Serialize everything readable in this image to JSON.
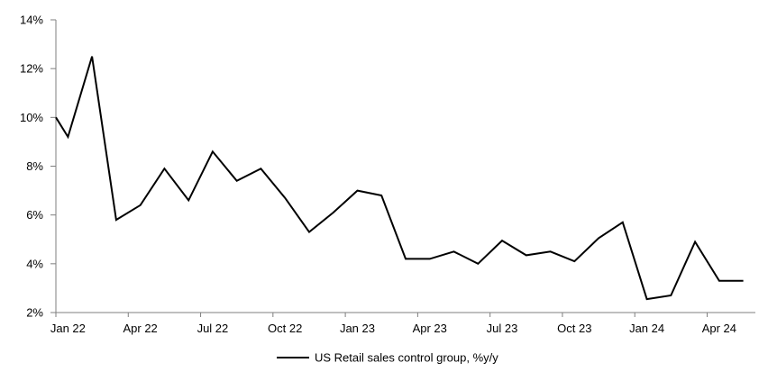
{
  "chart_data": {
    "type": "line",
    "title": "",
    "xlabel": "",
    "ylabel": "",
    "ylim": [
      2,
      14
    ],
    "y_tick_labels": [
      "2%",
      "4%",
      "6%",
      "8%",
      "10%",
      "12%",
      "14%"
    ],
    "x_tick_labels": [
      "Jan 22",
      "Apr 22",
      "Jul 22",
      "Oct 22",
      "Jan 23",
      "Apr 23",
      "Jul 23",
      "Oct 23",
      "Jan 24",
      "Apr 24"
    ],
    "grid": false,
    "legend_position": "bottom-center",
    "axis_color": "#7f7f7f",
    "background_color": "#ffffff",
    "legend": [
      {
        "label": "US Retail sales control group, %y/y",
        "color": "#000000"
      }
    ],
    "series": [
      {
        "name": "US Retail sales control group, %y/y",
        "color": "#000000",
        "x": [
          "Dec 21",
          "Jan 22",
          "Feb 22",
          "Mar 22",
          "Apr 22",
          "May 22",
          "Jun 22",
          "Jul 22",
          "Aug 22",
          "Sep 22",
          "Oct 22",
          "Nov 22",
          "Dec 22",
          "Jan 23",
          "Feb 23",
          "Mar 23",
          "Apr 23",
          "May 23",
          "Jun 23",
          "Jul 23",
          "Aug 23",
          "Sep 23",
          "Oct 23",
          "Nov 23",
          "Dec 23",
          "Jan 24",
          "Feb 24",
          "Mar 24",
          "Apr 24",
          "May 24"
        ],
        "values": [
          10.0,
          9.2,
          12.5,
          5.8,
          6.4,
          7.9,
          6.6,
          8.6,
          7.4,
          7.9,
          6.7,
          5.3,
          6.1,
          7.0,
          6.8,
          4.2,
          4.2,
          4.5,
          4.0,
          4.95,
          4.35,
          4.5,
          4.1,
          5.05,
          5.7,
          2.55,
          2.7,
          4.9,
          3.3,
          3.3
        ]
      }
    ]
  }
}
